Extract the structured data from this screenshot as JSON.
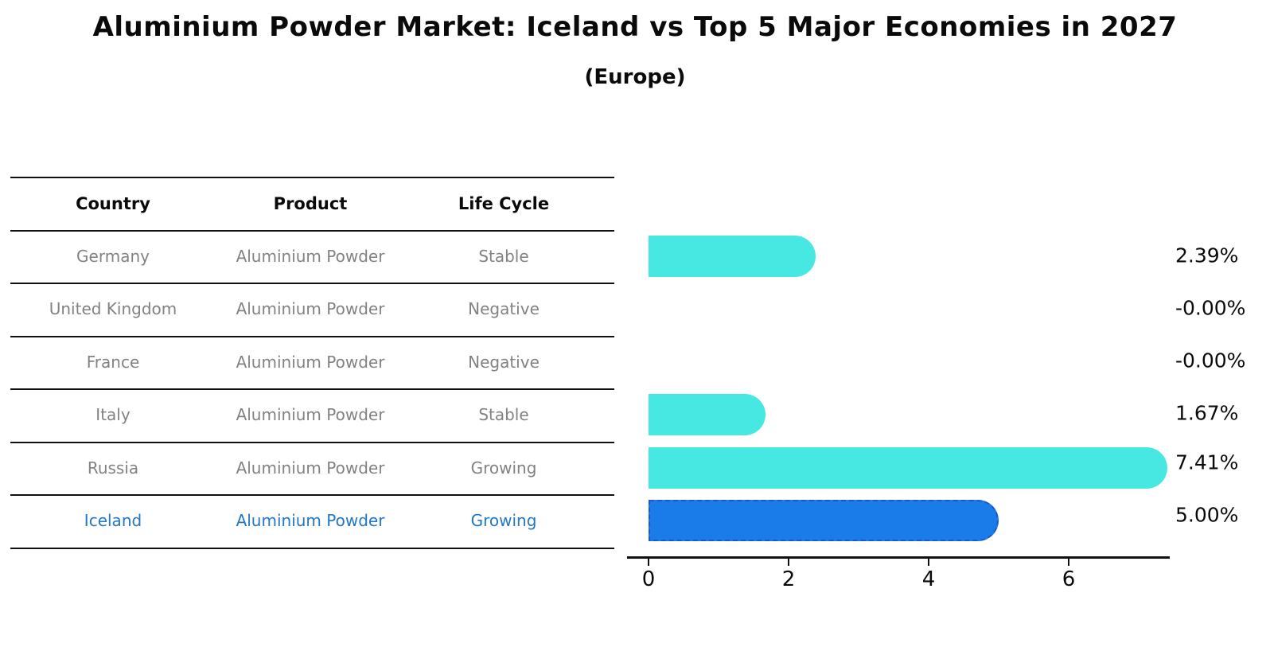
{
  "chart_data": {
    "type": "bar",
    "orientation": "horizontal",
    "title": "Aluminium Powder Market: Iceland vs Top 5 Major Economies in 2027",
    "subtitle": "(Europe)",
    "categories": [
      "Germany",
      "United Kingdom",
      "France",
      "Italy",
      "Russia",
      "Iceland"
    ],
    "values": [
      2.39,
      -0.0,
      -0.0,
      1.67,
      7.41,
      5.0
    ],
    "value_labels": [
      "2.39%",
      "-0.00%",
      "-0.00%",
      "1.67%",
      "7.41%",
      "5.00%"
    ],
    "xlim": [
      0,
      7.45
    ],
    "xticks": [
      0,
      2,
      4,
      6
    ],
    "xtick_labels": [
      "0",
      "2",
      "4",
      "6"
    ],
    "grid": false,
    "legend": "none",
    "highlight_index": 5,
    "bar_color_default": "#46e8e1",
    "bar_color_highlight": "#1a7ce8",
    "highlight_border_color": "#1d57c9"
  },
  "table": {
    "headers": {
      "country": "Country",
      "product": "Product",
      "life_cycle": "Life Cycle"
    },
    "rows": [
      {
        "country": "Germany",
        "product": "Aluminium Powder",
        "life_cycle": "Stable",
        "highlight": false
      },
      {
        "country": "United Kingdom",
        "product": "Aluminium Powder",
        "life_cycle": "Negative",
        "highlight": false
      },
      {
        "country": "France",
        "product": "Aluminium Powder",
        "life_cycle": "Negative",
        "highlight": false
      },
      {
        "country": "Italy",
        "product": "Aluminium Powder",
        "life_cycle": "Stable",
        "highlight": false
      },
      {
        "country": "Russia",
        "product": "Aluminium Powder",
        "life_cycle": "Growing",
        "highlight": false
      },
      {
        "country": "Iceland",
        "product": "Aluminium Powder",
        "life_cycle": "Growing",
        "highlight": true
      }
    ]
  },
  "colors": {
    "table_text": "#828282",
    "highlight_text": "#2277c8",
    "line": "#111111",
    "background": "#ffffff"
  }
}
